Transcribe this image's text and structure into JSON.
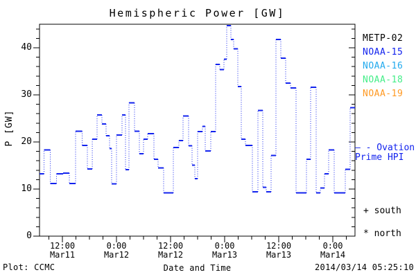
{
  "title": "Hemispheric Power [GW]",
  "footer": {
    "plot_credit": "Plot: CCMC",
    "xaxis_label": "Date and Time",
    "timestamp": "2014/03/14 05:25:10"
  },
  "legend": {
    "satellites": [
      {
        "label": "METP-02",
        "color": "#000000"
      },
      {
        "label": "NOAA-15",
        "color": "#1122ee"
      },
      {
        "label": "NOAA-16",
        "color": "#22aaee"
      },
      {
        "label": "NOAA-18",
        "color": "#44ee88"
      },
      {
        "label": "NOAA-19",
        "color": "#ff9922"
      }
    ],
    "series": {
      "marker_dash": "—",
      "line1": "- Ovation",
      "line2": "Prime HPI",
      "color": "#1122ee"
    },
    "markers": [
      {
        "symbol": "+",
        "label": "south"
      },
      {
        "symbol": "*",
        "label": "north"
      }
    ]
  },
  "chart_data": {
    "type": "line",
    "subtype": "step-dotted",
    "title": "Hemispheric Power [GW]",
    "xlabel": "Date and Time",
    "ylabel": "P [GW]",
    "ylim": [
      0,
      45
    ],
    "xlim_hours_since_mar11_0000": [
      6.92,
      76.92
    ],
    "grid": false,
    "y_ticks": [
      0,
      10,
      20,
      30,
      40
    ],
    "y_minor_step": 2,
    "x_minor_step_hours": 3,
    "x_ticks": [
      {
        "hour": 12,
        "time": "12:00",
        "date": "Mar11"
      },
      {
        "hour": 24,
        "time": "0:00",
        "date": "Mar12"
      },
      {
        "hour": 36,
        "time": "12:00",
        "date": "Mar12"
      },
      {
        "hour": 48,
        "time": "0:00",
        "date": "Mar13"
      },
      {
        "hour": 60,
        "time": "12:00",
        "date": "Mar13"
      },
      {
        "hour": 72,
        "time": "0:00",
        "date": "Mar14"
      }
    ],
    "series": [
      {
        "name": "Ovation Prime HPI",
        "color": "#1122ee",
        "t_end": 76.92,
        "steps_t_hours_p_gw": [
          [
            6.92,
            13.2
          ],
          [
            7.92,
            18.3
          ],
          [
            9.31,
            11.2
          ],
          [
            10.69,
            13.2
          ],
          [
            12.15,
            13.4
          ],
          [
            13.54,
            11.2
          ],
          [
            14.92,
            22.3
          ],
          [
            16.38,
            19.3
          ],
          [
            17.54,
            14.3
          ],
          [
            18.62,
            20.6
          ],
          [
            19.69,
            25.7
          ],
          [
            20.77,
            23.8
          ],
          [
            21.69,
            21.3
          ],
          [
            22.46,
            18.6
          ],
          [
            22.92,
            11.1
          ],
          [
            24.0,
            21.5
          ],
          [
            25.23,
            25.7
          ],
          [
            26.0,
            14.1
          ],
          [
            26.77,
            28.3
          ],
          [
            28.0,
            22.3
          ],
          [
            29.08,
            17.5
          ],
          [
            30.0,
            20.6
          ],
          [
            30.92,
            21.8
          ],
          [
            32.31,
            16.3
          ],
          [
            33.23,
            14.5
          ],
          [
            34.46,
            9.2
          ],
          [
            36.62,
            18.8
          ],
          [
            37.85,
            20.3
          ],
          [
            38.77,
            25.5
          ],
          [
            40.0,
            19.2
          ],
          [
            40.77,
            15.1
          ],
          [
            41.38,
            12.2
          ],
          [
            42.0,
            22.2
          ],
          [
            43.08,
            23.3
          ],
          [
            43.69,
            18.1
          ],
          [
            44.92,
            22.2
          ],
          [
            46.0,
            36.5
          ],
          [
            46.92,
            35.4
          ],
          [
            47.85,
            37.6
          ],
          [
            48.46,
            44.7
          ],
          [
            49.38,
            41.8
          ],
          [
            50.0,
            39.8
          ],
          [
            50.92,
            31.8
          ],
          [
            51.69,
            20.6
          ],
          [
            52.62,
            19.3
          ],
          [
            54.15,
            9.4
          ],
          [
            55.38,
            26.7
          ],
          [
            56.46,
            10.4
          ],
          [
            57.23,
            9.4
          ],
          [
            58.31,
            17.1
          ],
          [
            59.38,
            41.8
          ],
          [
            60.46,
            37.8
          ],
          [
            61.54,
            32.5
          ],
          [
            62.62,
            31.5
          ],
          [
            63.85,
            9.2
          ],
          [
            66.15,
            16.3
          ],
          [
            67.08,
            31.6
          ],
          [
            68.31,
            9.2
          ],
          [
            69.23,
            10.2
          ],
          [
            70.15,
            13.2
          ],
          [
            71.08,
            18.3
          ],
          [
            72.31,
            9.2
          ],
          [
            74.77,
            14.2
          ],
          [
            75.85,
            27.3
          ]
        ]
      }
    ]
  }
}
